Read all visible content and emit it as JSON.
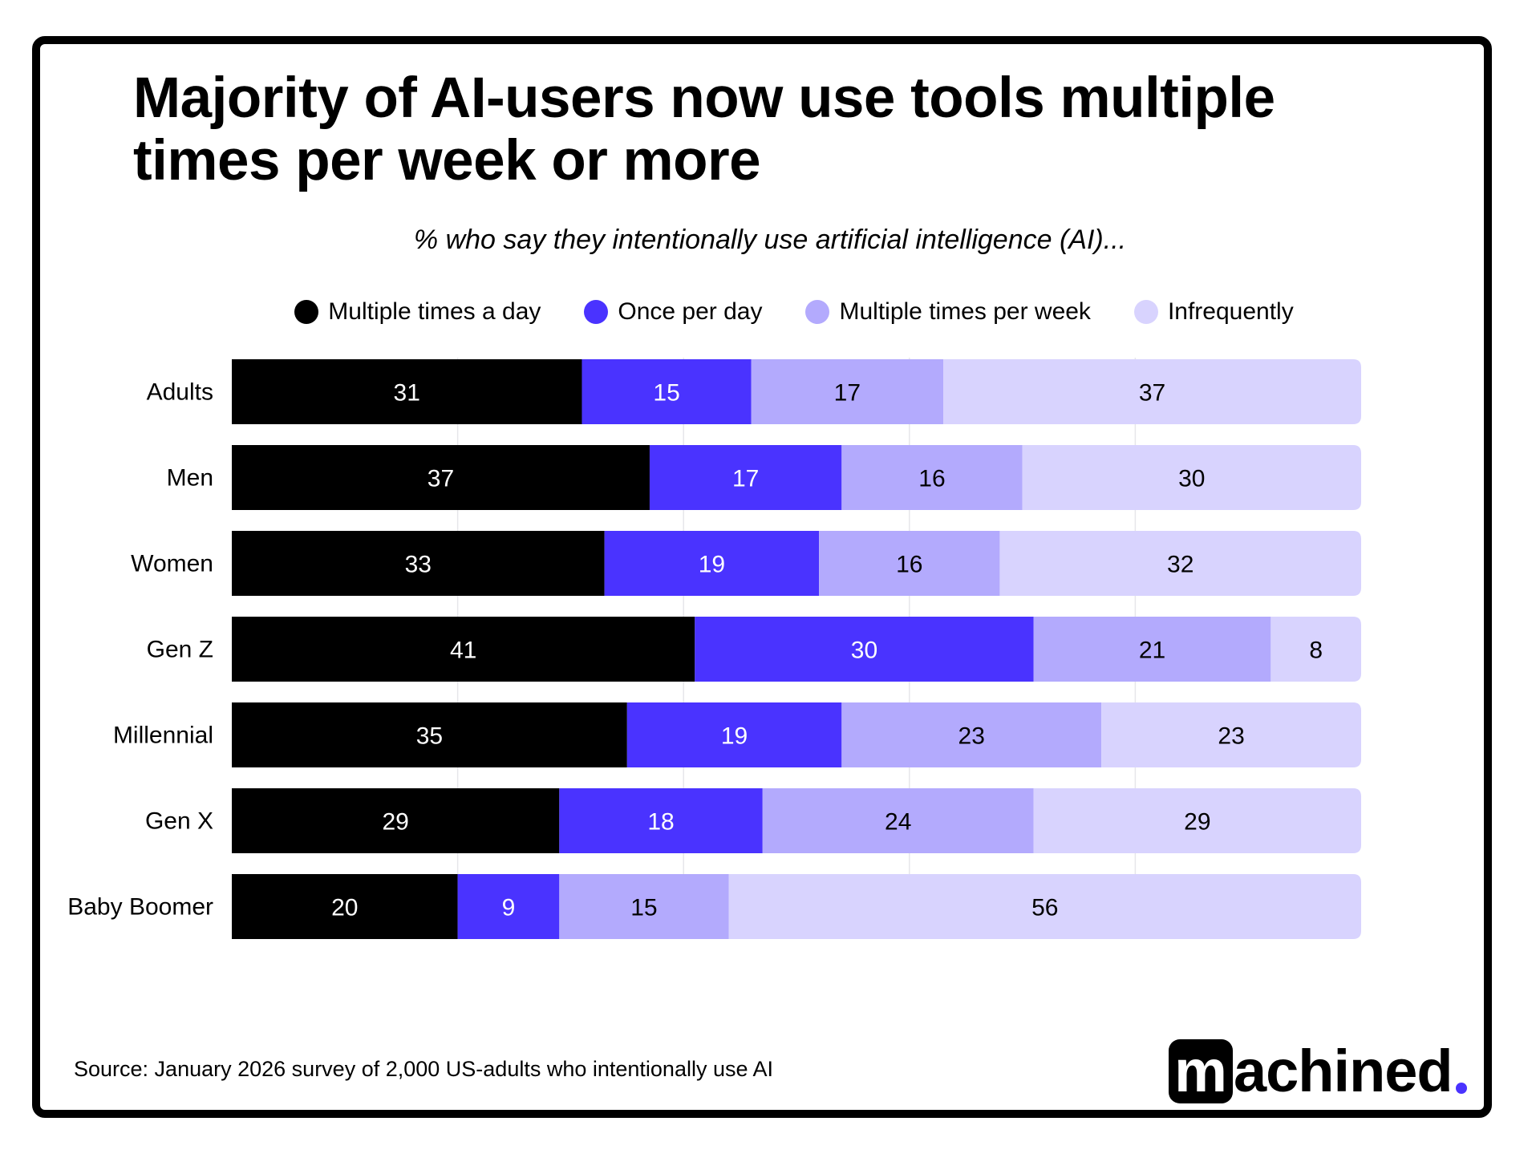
{
  "chart_data": {
    "type": "bar",
    "orientation": "horizontal",
    "stacked": true,
    "title": "Majority of AI-users now use tools multiple times per week or more",
    "subtitle": "% who say they intentionally use artificial intelligence (AI)...",
    "categories": [
      "Adults",
      "Men",
      "Women",
      "Gen Z",
      "Millennial",
      "Gen X",
      "Baby Boomer"
    ],
    "series": [
      {
        "name": "Multiple times a day",
        "color": "#000000",
        "label_color": "#ffffff",
        "values": [
          31,
          37,
          33,
          41,
          35,
          29,
          20
        ]
      },
      {
        "name": "Once per day",
        "color": "#4a33ff",
        "label_color": "#ffffff",
        "values": [
          15,
          17,
          19,
          30,
          19,
          18,
          9
        ]
      },
      {
        "name": "Multiple times per week",
        "color": "#b3aafd",
        "label_color": "#000000",
        "values": [
          17,
          16,
          16,
          21,
          23,
          24,
          15
        ]
      },
      {
        "name": "Infrequently",
        "color": "#d8d3fe",
        "label_color": "#000000",
        "values": [
          37,
          30,
          32,
          8,
          23,
          29,
          56
        ]
      }
    ],
    "xlim": [
      0,
      100
    ],
    "grid": true,
    "legend_position": "top"
  },
  "source": "Source:  January 2026 survey of 2,000 US-adults who intentionally use AI",
  "logo": {
    "text_m": "m",
    "text_rest": "achined",
    "accent": "#4a33ff"
  }
}
